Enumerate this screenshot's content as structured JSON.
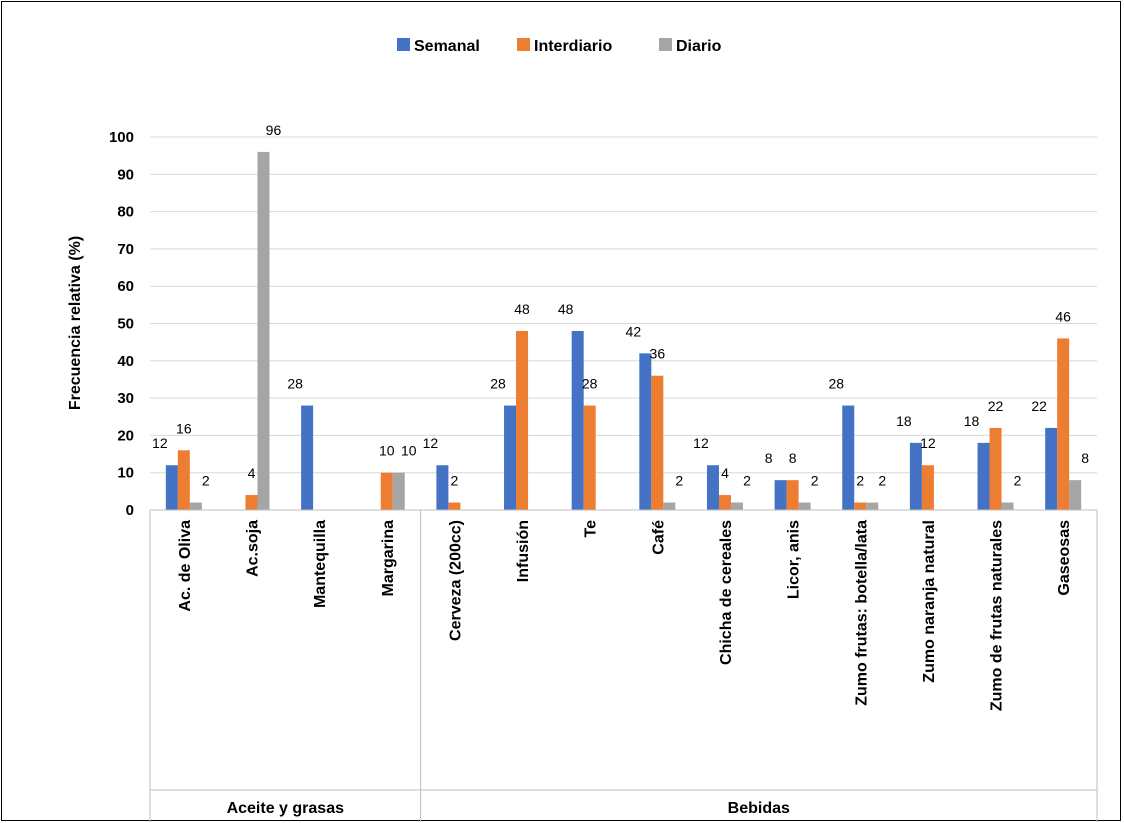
{
  "chart_data": {
    "type": "bar",
    "ylabel": "Frecuencia relativa (%)",
    "ylim": [
      0,
      100
    ],
    "yticks": [
      0,
      10,
      20,
      30,
      40,
      50,
      60,
      70,
      80,
      90,
      100
    ],
    "grid": true,
    "legend_position": "top",
    "groups": [
      {
        "name": "Aceite y grasas",
        "count": 4
      },
      {
        "name": "Bebidas",
        "count": 10
      }
    ],
    "categories": [
      "Ac. de Oliva",
      "Ac.soja",
      "Mantequilla",
      "Margarina",
      "Cerveza (200cc)",
      "Infusión",
      "Te",
      "Café",
      "Chicha de cereales",
      "Licor, anis",
      "Zumo frutas: botella/lata",
      "Zumo naranja natural",
      "Zumo de frutas naturales",
      "Gaseosas"
    ],
    "series": [
      {
        "name": "Semanal",
        "color": "#4472C4",
        "values": [
          12,
          null,
          28,
          null,
          12,
          28,
          48,
          42,
          12,
          8,
          28,
          18,
          18,
          22
        ]
      },
      {
        "name": "Interdiario",
        "color": "#ED7D31",
        "values": [
          16,
          4,
          null,
          10,
          2,
          48,
          28,
          36,
          4,
          8,
          2,
          12,
          22,
          46
        ]
      },
      {
        "name": "Diario",
        "color": "#A5A5A5",
        "values": [
          2,
          96,
          null,
          10,
          null,
          null,
          null,
          2,
          2,
          2,
          2,
          null,
          2,
          8
        ]
      }
    ]
  }
}
